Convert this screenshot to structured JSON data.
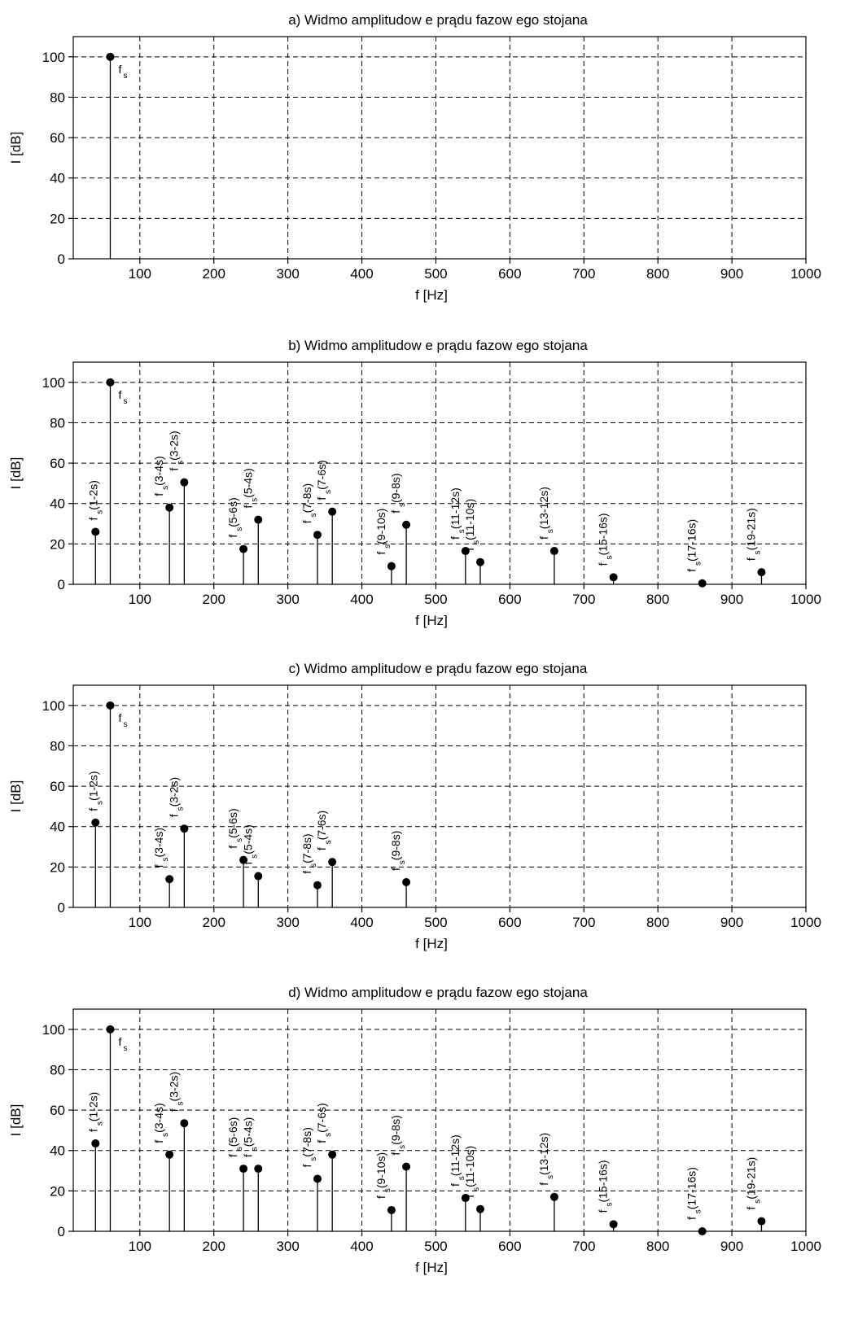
{
  "chart_data": [
    {
      "type": "stem",
      "title": "a) Widmo amplitudow e prądu fazow ego stojana",
      "xlabel": "f [Hz]",
      "ylabel": "I [dB]",
      "xlim": [
        10,
        1000
      ],
      "ylim": [
        0,
        110
      ],
      "xticks": [
        100,
        200,
        300,
        400,
        500,
        600,
        700,
        800,
        900,
        1000
      ],
      "yticks": [
        0,
        20,
        40,
        60,
        80,
        100
      ],
      "grid": true,
      "points": [
        {
          "x": 60,
          "y": 100,
          "label": {
            "main": "f",
            "sub": "s",
            "rest": "",
            "rotated": false
          }
        }
      ]
    },
    {
      "type": "stem",
      "title": "b) Widmo amplitudow e prądu fazow ego stojana",
      "xlabel": "f [Hz]",
      "ylabel": "I [dB]",
      "xlim": [
        10,
        1000
      ],
      "ylim": [
        0,
        110
      ],
      "xticks": [
        100,
        200,
        300,
        400,
        500,
        600,
        700,
        800,
        900,
        1000
      ],
      "yticks": [
        0,
        20,
        40,
        60,
        80,
        100
      ],
      "grid": true,
      "points": [
        {
          "x": 40,
          "y": 26,
          "label": {
            "main": "f",
            "sub": "s",
            "rest": "(1-2s)",
            "rotated": true
          }
        },
        {
          "x": 60,
          "y": 100,
          "label": {
            "main": "f",
            "sub": "s",
            "rest": "",
            "rotated": false
          }
        },
        {
          "x": 140,
          "y": 38,
          "label": {
            "main": "f",
            "sub": "s",
            "rest": "(3-4s)",
            "rotated": true
          }
        },
        {
          "x": 160,
          "y": 50.5,
          "label": {
            "main": "f",
            "sub": "s",
            "rest": "(3-2s)",
            "rotated": true
          }
        },
        {
          "x": 240,
          "y": 17.5,
          "label": {
            "main": "f",
            "sub": "s",
            "rest": "(5-6s)",
            "rotated": true
          }
        },
        {
          "x": 260,
          "y": 32,
          "label": {
            "main": "f",
            "sub": "s",
            "rest": "(5-4s)",
            "rotated": true
          }
        },
        {
          "x": 340,
          "y": 24.5,
          "label": {
            "main": "f",
            "sub": "s",
            "rest": "(7-8s)",
            "rotated": true
          }
        },
        {
          "x": 360,
          "y": 36,
          "label": {
            "main": "f",
            "sub": "s",
            "rest": "(7-6s)",
            "rotated": true
          }
        },
        {
          "x": 440,
          "y": 9,
          "label": {
            "main": "f",
            "sub": "s",
            "rest": "(9-10s)",
            "rotated": true
          }
        },
        {
          "x": 460,
          "y": 29.5,
          "label": {
            "main": "f",
            "sub": "s",
            "rest": "(9-8s)",
            "rotated": true
          }
        },
        {
          "x": 540,
          "y": 16.5,
          "label": {
            "main": "f",
            "sub": "s",
            "rest": "(11-12s)",
            "rotated": true
          }
        },
        {
          "x": 560,
          "y": 11,
          "label": {
            "main": "f",
            "sub": "s",
            "rest": "(11-10s)",
            "rotated": true
          }
        },
        {
          "x": 660,
          "y": 16.5,
          "label": {
            "main": "f",
            "sub": "s",
            "rest": "(13-12s)",
            "rotated": true
          }
        },
        {
          "x": 740,
          "y": 3.5,
          "label": {
            "main": "f",
            "sub": "s",
            "rest": "(15-16s)",
            "rotated": true
          }
        },
        {
          "x": 860,
          "y": 0.5,
          "label": {
            "main": "f",
            "sub": "s",
            "rest": "(17-16s)",
            "rotated": true
          }
        },
        {
          "x": 940,
          "y": 6,
          "label": {
            "main": "f",
            "sub": "s",
            "rest": "(19-21s)",
            "rotated": true
          }
        }
      ]
    },
    {
      "type": "stem",
      "title": "c) Widmo amplitudow e prądu fazow ego stojana",
      "xlabel": "f [Hz]",
      "ylabel": "I [dB]",
      "xlim": [
        10,
        1000
      ],
      "ylim": [
        0,
        110
      ],
      "xticks": [
        100,
        200,
        300,
        400,
        500,
        600,
        700,
        800,
        900,
        1000
      ],
      "yticks": [
        0,
        20,
        40,
        60,
        80,
        100
      ],
      "grid": true,
      "points": [
        {
          "x": 40,
          "y": 42,
          "label": {
            "main": "f",
            "sub": "s",
            "rest": "(1-2s)",
            "rotated": true
          }
        },
        {
          "x": 60,
          "y": 100,
          "label": {
            "main": "f",
            "sub": "s",
            "rest": "",
            "rotated": false
          }
        },
        {
          "x": 140,
          "y": 14,
          "label": {
            "main": "f",
            "sub": "s",
            "rest": "(3-4s)",
            "rotated": true
          }
        },
        {
          "x": 160,
          "y": 39,
          "label": {
            "main": "f",
            "sub": "s",
            "rest": "(3-2s)",
            "rotated": true
          }
        },
        {
          "x": 240,
          "y": 23.5,
          "label": {
            "main": "f",
            "sub": "s",
            "rest": "(5-6s)",
            "rotated": true
          }
        },
        {
          "x": 260,
          "y": 15.5,
          "label": {
            "main": "f",
            "sub": "s",
            "rest": "(5-4s)",
            "rotated": true
          }
        },
        {
          "x": 340,
          "y": 11,
          "label": {
            "main": "f",
            "sub": "s",
            "rest": "(7-8s)",
            "rotated": true
          }
        },
        {
          "x": 360,
          "y": 22.5,
          "label": {
            "main": "f",
            "sub": "s",
            "rest": "(7-6s)",
            "rotated": true
          }
        },
        {
          "x": 460,
          "y": 12.5,
          "label": {
            "main": "f",
            "sub": "s",
            "rest": "(9-8s)",
            "rotated": true
          }
        }
      ]
    },
    {
      "type": "stem",
      "title": "d) Widmo amplitudow e prądu fazow ego stojana",
      "xlabel": "f [Hz]",
      "ylabel": "I [dB]",
      "xlim": [
        10,
        1000
      ],
      "ylim": [
        0,
        110
      ],
      "xticks": [
        100,
        200,
        300,
        400,
        500,
        600,
        700,
        800,
        900,
        1000
      ],
      "yticks": [
        0,
        20,
        40,
        60,
        80,
        100
      ],
      "grid": true,
      "points": [
        {
          "x": 40,
          "y": 43.5,
          "label": {
            "main": "f",
            "sub": "s",
            "rest": "(1-2s)",
            "rotated": true
          }
        },
        {
          "x": 60,
          "y": 100,
          "label": {
            "main": "f",
            "sub": "s",
            "rest": "",
            "rotated": false
          }
        },
        {
          "x": 140,
          "y": 38,
          "label": {
            "main": "f",
            "sub": "s",
            "rest": "(3-4s)",
            "rotated": true
          }
        },
        {
          "x": 160,
          "y": 53.5,
          "label": {
            "main": "f",
            "sub": "s",
            "rest": "(3-2s)",
            "rotated": true
          }
        },
        {
          "x": 240,
          "y": 31,
          "label": {
            "main": "f",
            "sub": "s",
            "rest": "(5-6s)",
            "rotated": true
          }
        },
        {
          "x": 260,
          "y": 31,
          "label": {
            "main": "f",
            "sub": "s",
            "rest": "(5-4s)",
            "rotated": true
          }
        },
        {
          "x": 340,
          "y": 26,
          "label": {
            "main": "f",
            "sub": "s",
            "rest": "(7-8s)",
            "rotated": true
          }
        },
        {
          "x": 360,
          "y": 38,
          "label": {
            "main": "f",
            "sub": "s",
            "rest": "(7-6s)",
            "rotated": true
          }
        },
        {
          "x": 440,
          "y": 10.5,
          "label": {
            "main": "f",
            "sub": "s",
            "rest": "(9-10s)",
            "rotated": true
          }
        },
        {
          "x": 460,
          "y": 32,
          "label": {
            "main": "f",
            "sub": "s",
            "rest": "(9-8s)",
            "rotated": true
          }
        },
        {
          "x": 540,
          "y": 16.5,
          "label": {
            "main": "f",
            "sub": "s",
            "rest": "(11-12s)",
            "rotated": true
          }
        },
        {
          "x": 560,
          "y": 11,
          "label": {
            "main": "f",
            "sub": "s",
            "rest": "(11-10s)",
            "rotated": true
          }
        },
        {
          "x": 660,
          "y": 17,
          "label": {
            "main": "f",
            "sub": "s",
            "rest": "(13-12s)",
            "rotated": true
          }
        },
        {
          "x": 740,
          "y": 3.5,
          "label": {
            "main": "f",
            "sub": "s",
            "rest": "(15-16s)",
            "rotated": true
          }
        },
        {
          "x": 860,
          "y": 0,
          "label": {
            "main": "f",
            "sub": "s",
            "rest": "(17-16s)",
            "rotated": true
          }
        },
        {
          "x": 940,
          "y": 5,
          "label": {
            "main": "f",
            "sub": "s",
            "rest": "(19-21s)",
            "rotated": true
          }
        }
      ]
    }
  ]
}
